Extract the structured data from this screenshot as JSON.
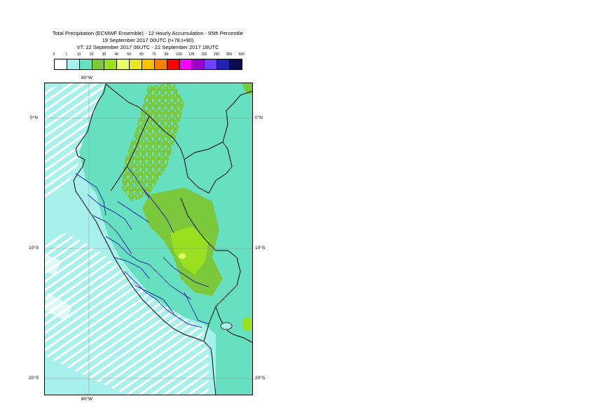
{
  "title": {
    "line1": "Total Precipitation (ECMWF Ensemble) - 12 Hourly Accumulation - 95th Percentile",
    "line2": "19 September 2017 00UTC (t+78,t+90)",
    "line3": "VT: 22 September 2017 06UTC - 22 September 2017 18UTC"
  },
  "legend": {
    "ticks": [
      "0",
      "1",
      "10",
      "20",
      "30",
      "40",
      "50",
      "60",
      "70",
      "80",
      "100",
      "125",
      "150",
      "200",
      "300",
      "500"
    ],
    "colors": [
      "#ffffff",
      "#a8f0ec",
      "#66e0c0",
      "#7cc83c",
      "#98e020",
      "#e6ff66",
      "#e6e626",
      "#ffc000",
      "#ff8000",
      "#ff0000",
      "#ff00ff",
      "#9a00c8",
      "#7040ff",
      "#2222b0",
      "#0a0a50"
    ]
  },
  "axes": {
    "lon_top": "80°W",
    "lon_bottom": "80°W",
    "lat_labels": [
      "0°N",
      "10°S",
      "20°S"
    ]
  },
  "map_colors": {
    "ocean": "#a8f0ec",
    "dry_band": "#ffffff",
    "land_base": "#66e0c0",
    "moderate": "#7cc83c",
    "heavy": "#98e020",
    "peak": "#e6ff66",
    "coast": "#000000",
    "regions": "#0000aa"
  }
}
